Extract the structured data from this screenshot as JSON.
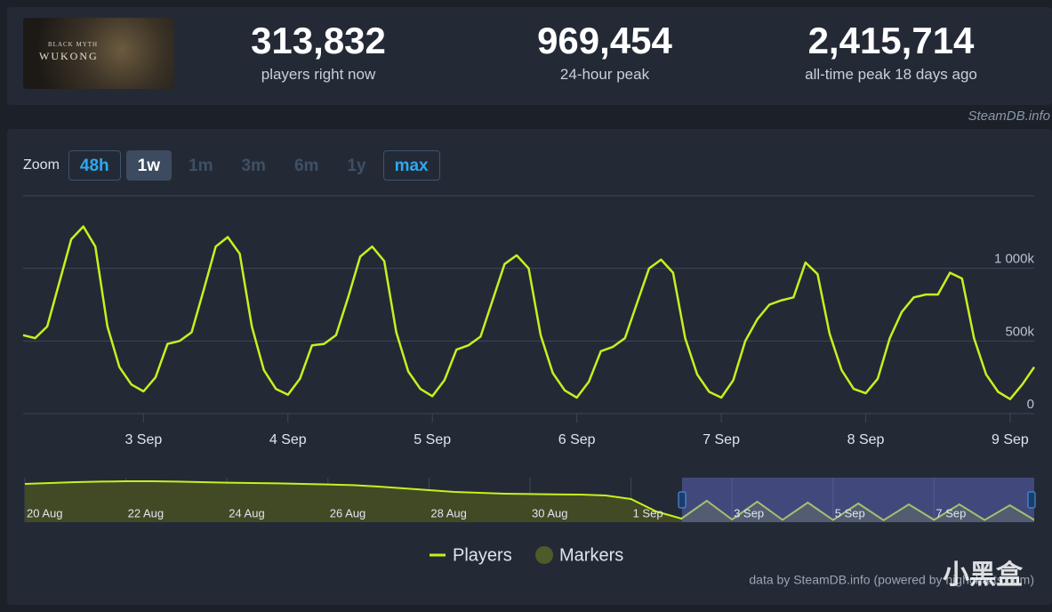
{
  "header": {
    "game_logo": {
      "line1": "BLACK MYTH",
      "line2": "WUKONG"
    },
    "stats": [
      {
        "value": "313,832",
        "label": "players right now"
      },
      {
        "value": "969,454",
        "label": "24-hour peak"
      },
      {
        "value": "2,415,714",
        "label": "all-time peak 18 days ago"
      }
    ],
    "source": "SteamDB.info"
  },
  "zoom": {
    "label": "Zoom",
    "options": [
      "48h",
      "1w",
      "1m",
      "3m",
      "6m",
      "1y",
      "max"
    ],
    "active_index": 1,
    "outlined": [
      0,
      6
    ],
    "dimmed": [
      2,
      3,
      4,
      5
    ]
  },
  "chart_data": [
    {
      "type": "line",
      "categories": [
        null,
        null,
        null,
        null,
        null,
        null,
        null,
        null,
        null,
        null,
        "3 Sep",
        null,
        null,
        null,
        null,
        null,
        null,
        null,
        null,
        null,
        null,
        null,
        "4 Sep",
        null,
        null,
        null,
        null,
        null,
        null,
        null,
        null,
        null,
        null,
        null,
        "5 Sep",
        null,
        null,
        null,
        null,
        null,
        null,
        null,
        null,
        null,
        null,
        null,
        "6 Sep",
        null,
        null,
        null,
        null,
        null,
        null,
        null,
        null,
        null,
        null,
        null,
        "7 Sep",
        null,
        null,
        null,
        null,
        null,
        null,
        null,
        null,
        null,
        null,
        null,
        "8 Sep",
        null,
        null,
        null,
        null,
        null,
        null,
        null,
        null,
        null,
        null,
        null,
        "9 Sep",
        null,
        null
      ],
      "series": [
        {
          "name": "Players",
          "color": "#c8f01e",
          "values": [
            540000,
            520000,
            600000,
            900000,
            1200000,
            1288000,
            1150000,
            600000,
            320000,
            200000,
            153000,
            250000,
            480000,
            500000,
            560000,
            850000,
            1150000,
            1215000,
            1100000,
            600000,
            300000,
            170000,
            130000,
            240000,
            470000,
            480000,
            540000,
            800000,
            1080000,
            1150000,
            1050000,
            560000,
            290000,
            170000,
            120000,
            230000,
            440000,
            470000,
            530000,
            780000,
            1030000,
            1090000,
            1000000,
            540000,
            280000,
            160000,
            110000,
            220000,
            430000,
            460000,
            520000,
            760000,
            1000000,
            1060000,
            970000,
            520000,
            270000,
            150000,
            110000,
            230000,
            500000,
            650000,
            750000,
            780000,
            800000,
            1040000,
            960000,
            550000,
            300000,
            170000,
            140000,
            240000,
            520000,
            700000,
            800000,
            820000,
            820000,
            970000,
            930000,
            520000,
            270000,
            150000,
            100000,
            200000,
            320000
          ]
        }
      ],
      "markers": {
        "name": "Markers",
        "color": "#4d5a2a"
      },
      "ylim": [
        0,
        1500000
      ],
      "yticks": [
        0,
        {
          "value": 500000,
          "label": "500k"
        },
        {
          "value": 1000000,
          "label": "1 000k"
        }
      ],
      "grid": true
    },
    {
      "type": "area",
      "categories": [
        "20 Aug",
        null,
        null,
        null,
        "22 Aug",
        null,
        null,
        null,
        "24 Aug",
        null,
        null,
        null,
        "26 Aug",
        null,
        null,
        null,
        "28 Aug",
        null,
        null,
        null,
        "30 Aug",
        null,
        null,
        null,
        "1 Sep",
        null,
        null,
        null,
        "3 Sep",
        null,
        null,
        null,
        "5 Sep",
        null,
        null,
        null,
        "7 Sep",
        null,
        null,
        null,
        null
      ],
      "values": [
        2150000,
        2200000,
        2250000,
        2280000,
        2300000,
        2300000,
        2280000,
        2250000,
        2220000,
        2200000,
        2180000,
        2150000,
        2120000,
        2080000,
        2000000,
        1900000,
        1800000,
        1700000,
        1650000,
        1600000,
        1580000,
        1560000,
        1550000,
        1500000,
        1300000,
        600000,
        200000,
        1200000,
        150000,
        1150000,
        130000,
        1100000,
        120000,
        1050000,
        110000,
        1000000,
        130000,
        1000000,
        120000,
        950000,
        100000
      ],
      "color": "#c8f01e",
      "fill": "#414a24",
      "ylim": [
        0,
        2500000
      ]
    }
  ],
  "credits": "data by SteamDB.info (powered by highcharts.com)",
  "watermark": "小黑盒"
}
